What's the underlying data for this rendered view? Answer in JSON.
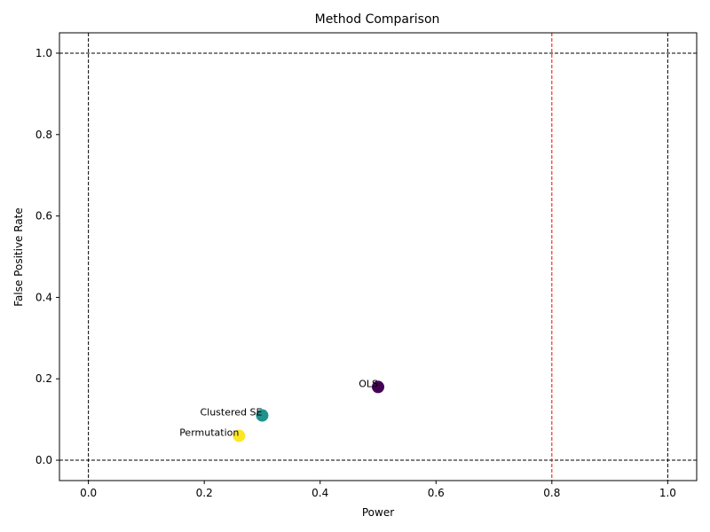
{
  "chart_data": {
    "type": "scatter",
    "title": "Method Comparison",
    "xlabel": "Power",
    "ylabel": "False Positive Rate",
    "xlim": [
      -0.05,
      1.05
    ],
    "ylim": [
      -0.05,
      1.05
    ],
    "xticks": [
      "0.0",
      "0.2",
      "0.4",
      "0.6",
      "0.8",
      "1.0"
    ],
    "yticks": [
      "0.0",
      "0.2",
      "0.4",
      "0.6",
      "0.8",
      "1.0"
    ],
    "grid": false,
    "points": [
      {
        "label": "OLS",
        "x": 0.5,
        "y": 0.18,
        "color": "#440154"
      },
      {
        "label": "Clustered SE",
        "x": 0.3,
        "y": 0.11,
        "color": "#21918c"
      },
      {
        "label": "Permutation",
        "x": 0.26,
        "y": 0.06,
        "color": "#fde725"
      }
    ],
    "reference_lines": [
      {
        "orientation": "vertical",
        "value": 0.0,
        "color": "#000000",
        "style": "dashed"
      },
      {
        "orientation": "vertical",
        "value": 1.0,
        "color": "#000000",
        "style": "dashed"
      },
      {
        "orientation": "horizontal",
        "value": 0.0,
        "color": "#000000",
        "style": "dashed"
      },
      {
        "orientation": "horizontal",
        "value": 1.0,
        "color": "#000000",
        "style": "dashed"
      },
      {
        "orientation": "vertical",
        "value": 0.8,
        "color": "#ff0000",
        "style": "dashed"
      }
    ]
  }
}
